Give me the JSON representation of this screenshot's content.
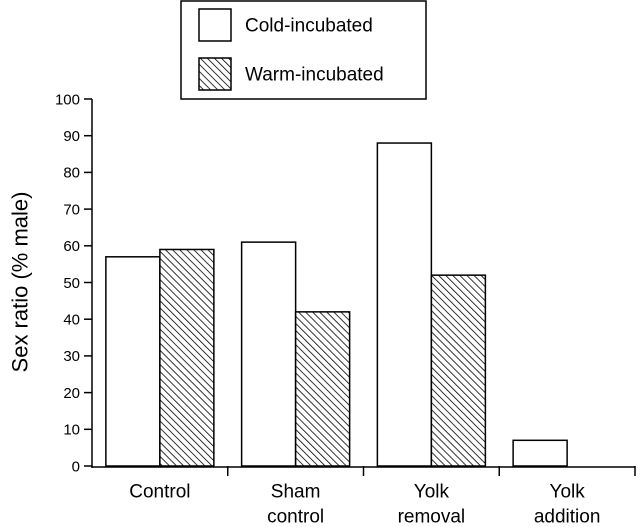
{
  "chart_data": {
    "type": "bar",
    "title": "",
    "xlabel": "",
    "ylabel": "Sex ratio (% male)",
    "ylim": [
      0,
      100
    ],
    "yticks": [
      0,
      10,
      20,
      30,
      40,
      50,
      60,
      70,
      80,
      90,
      100
    ],
    "grid": false,
    "legend_position": "top-center",
    "categories": [
      [
        "Control"
      ],
      [
        "Sham",
        "control"
      ],
      [
        "Yolk",
        "removal"
      ],
      [
        "Yolk",
        "addition"
      ]
    ],
    "series": [
      {
        "name": "Cold-incubated",
        "fill": "white",
        "color": "#ffffff",
        "values": [
          57,
          61,
          88,
          7
        ]
      },
      {
        "name": "Warm-incubated",
        "fill": "hatched",
        "color": "#000000",
        "values": [
          59,
          42,
          52,
          0
        ]
      }
    ]
  }
}
